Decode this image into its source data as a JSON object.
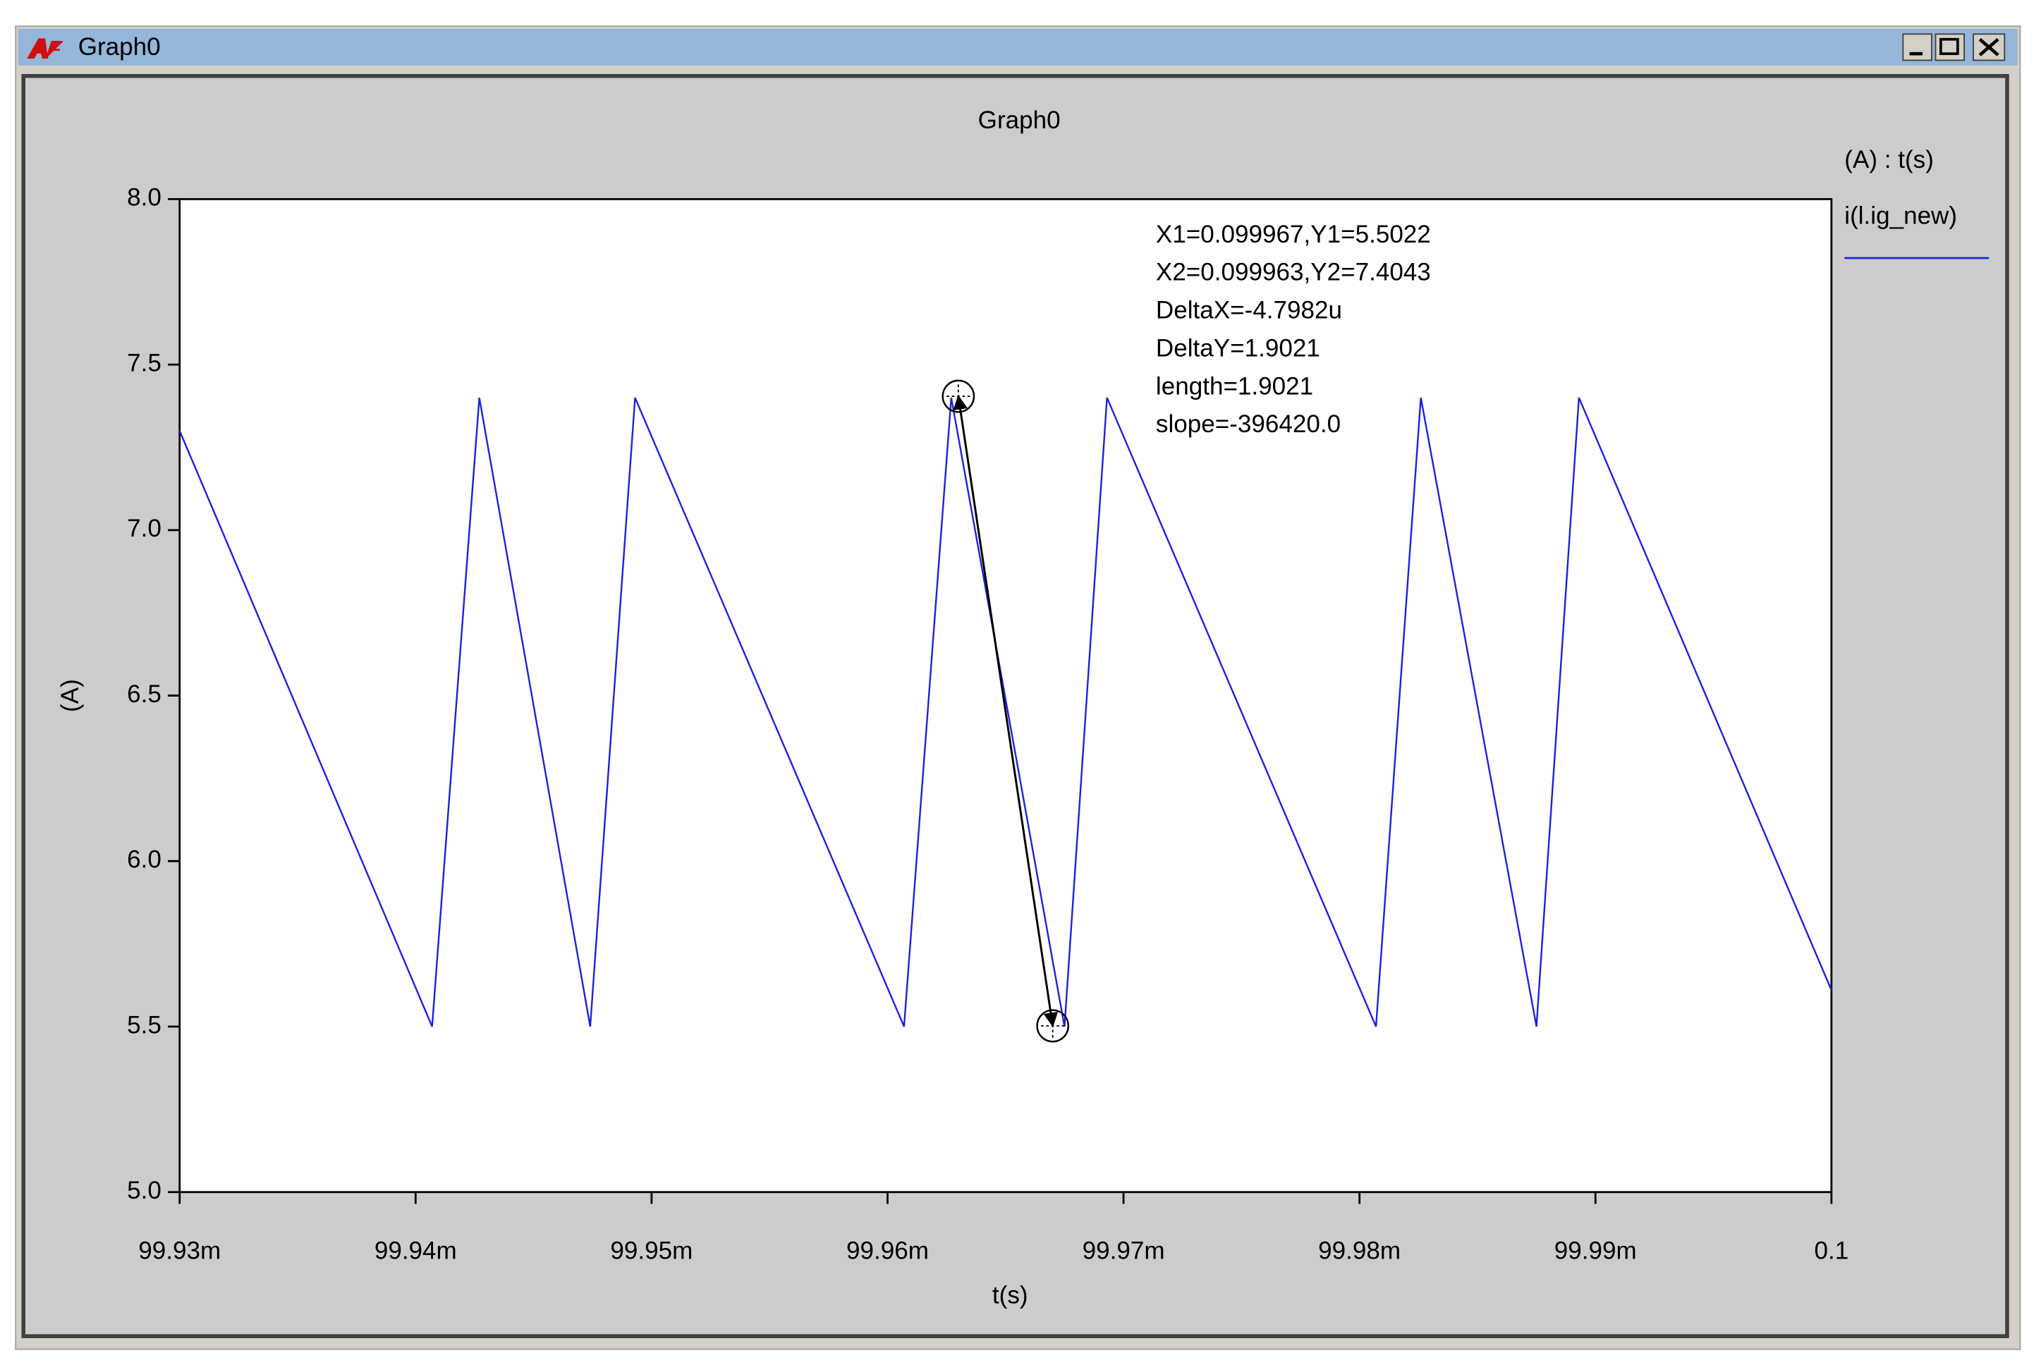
{
  "window": {
    "title": "Graph0"
  },
  "chart_data": {
    "type": "line",
    "title": "Graph0",
    "x_label": "t(s)",
    "y_label": "(A)",
    "legend_title": "(A) : t(s)",
    "x": [
      0.09993,
      0.0999407,
      0.0999427,
      0.0999474,
      0.0999493,
      0.0999607,
      0.0999627,
      0.0999675,
      0.0999693,
      0.0999807,
      0.0999826,
      0.0999875,
      0.0999893,
      0.1
    ],
    "series": [
      {
        "name": "i(l.ig_new)",
        "color": "#2020e0",
        "values": [
          7.3,
          5.5,
          7.4,
          5.5,
          7.4,
          5.5,
          7.4,
          5.5,
          7.4,
          5.5,
          7.4,
          5.5,
          7.4,
          5.61
        ]
      }
    ],
    "xlim": [
      0.09993,
      0.1
    ],
    "xticks": [
      {
        "value": 0.09993,
        "label": "99.93m"
      },
      {
        "value": 0.09994,
        "label": "99.94m"
      },
      {
        "value": 0.09995,
        "label": "99.95m"
      },
      {
        "value": 0.09996,
        "label": "99.96m"
      },
      {
        "value": 0.09997,
        "label": "99.97m"
      },
      {
        "value": 0.09998,
        "label": "99.98m"
      },
      {
        "value": 0.09999,
        "label": "99.99m"
      },
      0.1
    ],
    "ylim": [
      5,
      8
    ],
    "yticks": [
      {
        "value": 5,
        "label": "5.0"
      },
      5.5,
      {
        "value": 6,
        "label": "6.0"
      },
      6.5,
      {
        "value": 7,
        "label": "7.0"
      },
      7.5,
      {
        "value": 8,
        "label": "8.0"
      }
    ],
    "cursors": [
      {
        "x": 0.099967,
        "y": 5.5022
      },
      {
        "x": 0.099963,
        "y": 7.4043
      }
    ],
    "annotations": [
      "X1=0.099967,Y1=5.5022",
      "X2=0.099963,Y2=7.4043",
      "DeltaX=-4.7982u",
      "DeltaY=1.9021",
      "length=1.9021",
      "slope=-396420.0"
    ]
  }
}
